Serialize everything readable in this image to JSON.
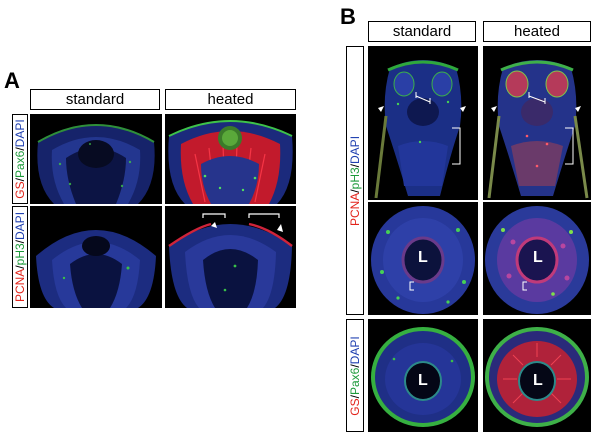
{
  "panel_a": {
    "letter": "A",
    "conditions": [
      "standard",
      "heated"
    ],
    "row_labels": [
      {
        "parts": [
          {
            "text": "GS",
            "color": "red"
          },
          {
            "text": "/",
            "color": "black"
          },
          {
            "text": "Pax6",
            "color": "green"
          },
          {
            "text": "/",
            "color": "black"
          },
          {
            "text": "DAPI",
            "color": "blue"
          }
        ]
      },
      {
        "parts": [
          {
            "text": "PCNA",
            "color": "red"
          },
          {
            "text": "/",
            "color": "black"
          },
          {
            "text": "pH3",
            "color": "green"
          },
          {
            "text": "/",
            "color": "black"
          },
          {
            "text": "DAPI",
            "color": "blue"
          }
        ]
      }
    ]
  },
  "panel_b": {
    "letter": "B",
    "conditions": [
      "standard",
      "heated"
    ],
    "row_labels": [
      {
        "parts": [
          {
            "text": "PCNA",
            "color": "red"
          },
          {
            "text": "/",
            "color": "black"
          },
          {
            "text": "pH3",
            "color": "green"
          },
          {
            "text": "/",
            "color": "black"
          },
          {
            "text": "DAPI",
            "color": "blue"
          }
        ]
      },
      {
        "parts": [
          {
            "text": "GS",
            "color": "red"
          },
          {
            "text": "/",
            "color": "black"
          },
          {
            "text": "Pax6",
            "color": "green"
          },
          {
            "text": "/",
            "color": "black"
          },
          {
            "text": "DAPI",
            "color": "blue"
          }
        ]
      }
    ],
    "lens_marker": "L"
  },
  "colors": {
    "red": "#e2231a",
    "green": "#1c9a3a",
    "blue": "#1f3fb0",
    "black": "#000000"
  }
}
